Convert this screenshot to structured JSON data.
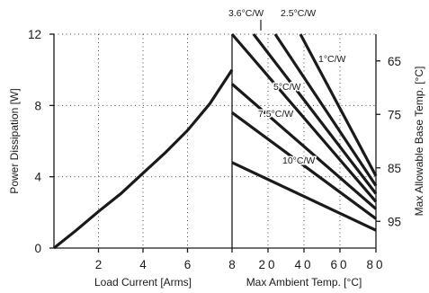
{
  "chart_data": {
    "type": "line",
    "left_panel": {
      "xlabel": "Load Current  [Arms]",
      "ylabel": "Power Dissipation [W]",
      "xlim": [
        0,
        8
      ],
      "ylim": [
        0,
        12
      ],
      "x_ticks": [
        "2",
        "4",
        "6",
        "8"
      ],
      "y_ticks": [
        "0",
        "4",
        "8",
        "12"
      ],
      "series": [
        {
          "x": [
            0,
            1,
            2,
            3,
            4,
            5,
            6,
            7,
            8
          ],
          "y": [
            0,
            1.0,
            2.05,
            3.05,
            4.2,
            5.35,
            6.6,
            8.1,
            10.0
          ]
        }
      ]
    },
    "right_panel": {
      "xlabel": "Max Ambient Temp. [°C]",
      "ylabel": "Max Allowable Base Temp. [°C]",
      "xlim": [
        0,
        80
      ],
      "x_ticks": [
        "20",
        "40",
        "60",
        "80"
      ],
      "right_ticks": [
        "65",
        "75",
        "85",
        "95"
      ],
      "right_tick_ylim": [
        60,
        100
      ],
      "series": [
        {
          "name": "1°C/W",
          "label_shown": true,
          "x": [
            38,
            80
          ],
          "y": [
            12,
            4.05
          ]
        },
        {
          "name": "2.5°C/W",
          "label_shown": true,
          "x": [
            24,
            80
          ],
          "y": [
            12,
            3.5
          ]
        },
        {
          "name": "3.6°C/W",
          "label_shown": true,
          "x": [
            12,
            80
          ],
          "y": [
            12,
            3.05
          ]
        },
        {
          "name": "",
          "label_shown": false,
          "x": [
            0,
            80
          ],
          "y": [
            12,
            2.6
          ]
        },
        {
          "name": "5°C/W",
          "label_shown": true,
          "x": [
            0,
            80
          ],
          "y": [
            9.2,
            2.2
          ]
        },
        {
          "name": "7.5°C/W",
          "label_shown": true,
          "x": [
            0,
            80
          ],
          "y": [
            7.6,
            1.65
          ]
        },
        {
          "name": "10°C/W",
          "label_shown": true,
          "x": [
            0,
            80
          ],
          "y": [
            4.8,
            1.0
          ]
        }
      ]
    }
  }
}
